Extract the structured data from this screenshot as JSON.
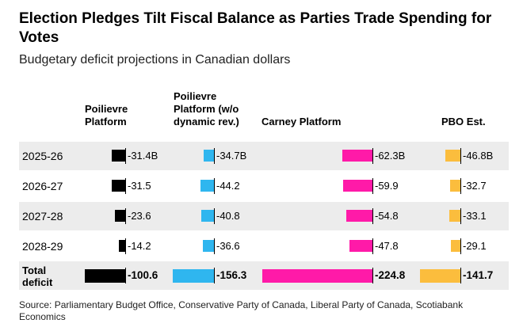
{
  "header": {
    "title": "Election Pledges Tilt Fiscal Balance as Parties Trade Spending for Votes",
    "subtitle": "Budgetary deficit projections in Canadian dollars"
  },
  "columns": [
    {
      "label": "Poilievre\nPlatform",
      "color": "#000000"
    },
    {
      "label": "Poilievre\nPlatform (w/o\ndynamic rev.)",
      "color": "#2fb6ef"
    },
    {
      "label": "Carney Platform",
      "color": "#ff1aa8"
    },
    {
      "label": "PBO Est.",
      "color": "#fbbd3d"
    }
  ],
  "rows": [
    {
      "label": "2025-26",
      "labels": [
        "-31.4B",
        "-34.7B",
        "-62.3B",
        "-46.8B"
      ]
    },
    {
      "label": "2026-27",
      "labels": [
        "-31.5",
        "-44.2",
        "-59.9",
        "-32.7"
      ]
    },
    {
      "label": "2027-28",
      "labels": [
        "-23.6",
        "-40.8",
        "-54.8",
        "-33.1"
      ]
    },
    {
      "label": "2028-29",
      "labels": [
        "-14.2",
        "-36.6",
        "-47.8",
        "-29.1"
      ]
    },
    {
      "label": "Total\ndeficit",
      "labels": [
        "-100.6",
        "-156.3",
        "-224.8",
        "-141.7"
      ]
    }
  ],
  "footer": {
    "source": "Source: Parliamentary Budget Office, Conservative Party of Canada, Liberal Party of Canada, Scotiabank Economics"
  },
  "colors": {
    "band": "#ececec"
  },
  "chart_data": {
    "type": "table",
    "categories": [
      "2025-26",
      "2026-27",
      "2027-28",
      "2028-29",
      "Total deficit"
    ],
    "unit": "Canadian dollars (billions)",
    "series": [
      {
        "name": "Poilievre Platform",
        "values": [
          -31.4,
          -31.5,
          -23.6,
          -14.2,
          -100.6
        ]
      },
      {
        "name": "Poilievre Platform (w/o dynamic rev.)",
        "values": [
          -34.7,
          -44.2,
          -40.8,
          -36.6,
          -156.3
        ]
      },
      {
        "name": "Carney Platform",
        "values": [
          -62.3,
          -59.9,
          -54.8,
          -47.8,
          -224.8
        ]
      },
      {
        "name": "PBO Est.",
        "values": [
          -46.8,
          -32.7,
          -33.1,
          -29.1,
          -141.7
        ]
      }
    ]
  }
}
